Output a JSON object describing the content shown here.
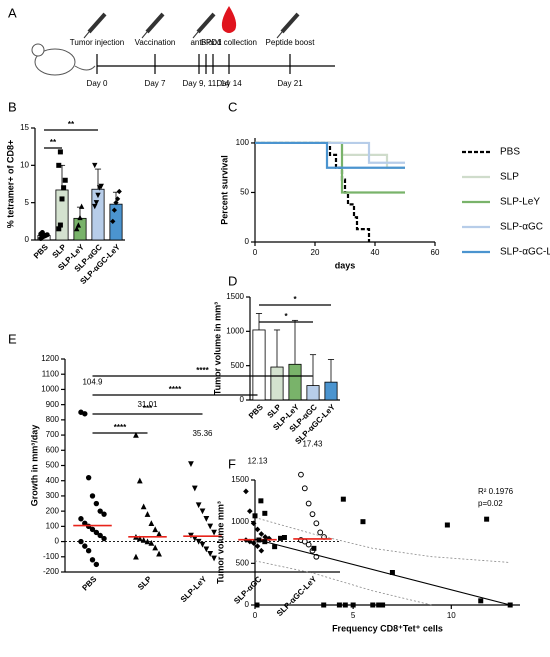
{
  "timeline": {
    "panel": "A",
    "events": [
      {
        "label": "Tumor injection",
        "day": "Day 0"
      },
      {
        "label": "Vaccination",
        "day": "Day 7"
      },
      {
        "label": "anti-PD1",
        "day": "Day 9, 11, 14"
      },
      {
        "label": "Blood collection",
        "day": "Day 14"
      },
      {
        "label": "Peptide boost",
        "day": "Day 21"
      }
    ]
  },
  "chart_data": [
    {
      "panel": "B",
      "type": "bar",
      "ylabel": "% tetramer+ of CD8+",
      "categories": [
        "PBS",
        "SLP",
        "SLP-LeY",
        "SLP-αGC",
        "SLP-αGC-LeY"
      ],
      "values": [
        0.6,
        6.7,
        2.9,
        6.8,
        4.8
      ],
      "errors": [
        0.3,
        3.3,
        1.5,
        2.7,
        1.6
      ],
      "colors": [
        "#ffffff",
        "#d4e2cf",
        "#79b36a",
        "#b7cde9",
        "#4b94cf"
      ],
      "markers": [
        "circle",
        "square",
        "triangle",
        "triangle-down",
        "diamond"
      ],
      "points": [
        [
          0.2,
          0.4,
          0.5,
          0.6,
          0.7,
          0.8,
          1.0
        ],
        [
          1.5,
          2,
          5.5,
          7,
          8,
          10,
          11.8
        ],
        [
          1.5,
          2,
          3,
          4.5
        ],
        [
          4.5,
          5,
          6,
          7,
          7.2,
          10
        ],
        [
          2.5,
          4,
          5,
          5.5,
          6.5
        ]
      ],
      "significance": [
        {
          "label": "**",
          "from": 0,
          "to": 1
        },
        {
          "label": "**",
          "from": 0,
          "to": 3
        }
      ],
      "ylim": [
        0,
        15
      ],
      "yticks": [
        0,
        5,
        10,
        15
      ]
    },
    {
      "panel": "C",
      "type": "survival",
      "ylabel": "Percent survival",
      "xlabel": "days",
      "xlim": [
        0,
        60
      ],
      "xticks": [
        0,
        20,
        40,
        60
      ],
      "ylim": [
        0,
        105
      ],
      "yticks": [
        0,
        50,
        100
      ],
      "series": [
        {
          "name": "PBS",
          "color": "#000000",
          "dash": true,
          "x": [
            0,
            25,
            27,
            29,
            30,
            31,
            33,
            34,
            38
          ],
          "values": [
            100,
            88,
            75,
            63,
            50,
            38,
            25,
            13,
            0
          ]
        },
        {
          "name": "SLP",
          "color": "#cfdccb",
          "x": [
            0,
            29,
            44,
            50
          ],
          "values": [
            100,
            88,
            75,
            75
          ]
        },
        {
          "name": "SLP-LeY",
          "color": "#79b36a",
          "x": [
            0,
            29,
            50
          ],
          "values": [
            100,
            50,
            50
          ]
        },
        {
          "name": "SLP-αGC",
          "color": "#b7cde9",
          "x": [
            0,
            38,
            50
          ],
          "values": [
            100,
            80,
            80
          ]
        },
        {
          "name": "SLP-αGC-LeY",
          "color": "#4b94cf",
          "x": [
            0,
            24,
            50
          ],
          "values": [
            100,
            75,
            75
          ]
        }
      ]
    },
    {
      "panel": "D",
      "type": "bar",
      "ylabel": "Tumor volume in mm³",
      "categories": [
        "PBS",
        "SLP",
        "SLP-LeY",
        "SLP-αGC",
        "SLP-αGC-LeY"
      ],
      "values": [
        1020,
        480,
        520,
        210,
        260
      ],
      "errors": [
        240,
        540,
        640,
        450,
        330
      ],
      "colors": [
        "#ffffff",
        "#d4e2cf",
        "#79b36a",
        "#b7cde9",
        "#4b94cf"
      ],
      "significance": [
        {
          "label": "*",
          "from": 0,
          "to": 3
        },
        {
          "label": "*",
          "from": 0,
          "to": 4
        }
      ],
      "ylim": [
        0,
        1500
      ],
      "yticks": [
        0,
        500,
        1000,
        1500
      ]
    },
    {
      "panel": "E",
      "type": "dot",
      "ylabel": "Growth in mm³/day",
      "categories": [
        "PBS",
        "SLP",
        "SLP-LeY",
        "SLP-αGC",
        "SLP-αGC-LeY"
      ],
      "markers": [
        "circle",
        "triangle",
        "triangle-down",
        "diamond",
        "open-circle"
      ],
      "points": [
        [
          850,
          840,
          420,
          300,
          250,
          200,
          180,
          150,
          120,
          100,
          80,
          60,
          40,
          20,
          0,
          -30,
          -60,
          -120,
          -150
        ],
        [
          700,
          400,
          230,
          180,
          120,
          80,
          50,
          30,
          20,
          10,
          0,
          -10,
          -40,
          -80,
          -100
        ],
        [
          510,
          350,
          240,
          200,
          150,
          100,
          60,
          40,
          20,
          0,
          -20,
          -50,
          -80,
          -110
        ],
        [
          330,
          200,
          120,
          80,
          50,
          30,
          20,
          10,
          0,
          -10,
          -30,
          -60
        ],
        [
          440,
          350,
          250,
          180,
          120,
          60,
          30,
          10,
          0,
          -20,
          -60,
          -100
        ]
      ],
      "medians": [
        104.9,
        31.01,
        35.36,
        12.13,
        17.43
      ],
      "median_color": "#e8231a",
      "significance": [
        {
          "label": "****",
          "from": 0,
          "to": 1
        },
        {
          "label": "***",
          "from": 0,
          "to": 2
        },
        {
          "label": "****",
          "from": 0,
          "to": 3
        },
        {
          "label": "****",
          "from": 0,
          "to": 4
        }
      ],
      "ylim": [
        -200,
        1200
      ],
      "yticks": [
        -200,
        -100,
        0,
        100,
        200,
        300,
        400,
        500,
        600,
        700,
        800,
        900,
        1000,
        1100,
        1200
      ]
    },
    {
      "panel": "F",
      "type": "scatter",
      "ylabel": "Tumor volume mm³",
      "xlabel": "Frequency CD8⁺Tet⁺ cells",
      "x": [
        0,
        0.3,
        0.5,
        0.2,
        0.5,
        1,
        1.3,
        1.5,
        3,
        4.5,
        5.5,
        9.8,
        11.8,
        7,
        3.5,
        4.3,
        4.6,
        5,
        6,
        6.3,
        6.5,
        0.1,
        11.5,
        13
      ],
      "y": [
        1070,
        1250,
        1100,
        780,
        760,
        700,
        800,
        810,
        680,
        1270,
        1000,
        960,
        1030,
        390,
        0,
        0,
        0,
        0,
        0,
        0,
        0,
        0,
        50,
        0
      ],
      "fit": {
        "x": [
          0,
          13
        ],
        "values": [
          790,
          0
        ]
      },
      "band_upper": {
        "x": [
          0,
          3,
          6,
          9,
          13
        ],
        "values": [
          1050,
          850,
          680,
          580,
          510
        ]
      },
      "band_lower": {
        "x": [
          0,
          3,
          6,
          9
        ],
        "values": [
          530,
          380,
          170,
          0
        ]
      },
      "annotations": [
        "R² 0.1976",
        "p=0.02"
      ],
      "xlim": [
        0,
        13.5
      ],
      "xticks": [
        0,
        5,
        10
      ],
      "ylim": [
        0,
        1500
      ],
      "yticks": [
        0,
        500,
        1000,
        1500
      ]
    }
  ]
}
